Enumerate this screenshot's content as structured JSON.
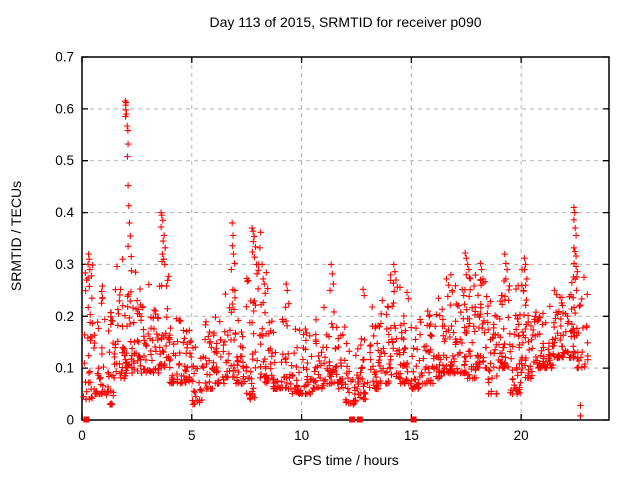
{
  "chart_data": {
    "type": "scatter",
    "title": "Day 113 of 2015, SRMTID for receiver p090",
    "xlabel": "GPS time / hours",
    "ylabel": "SRMTID / TECUs",
    "xlim": [
      0,
      24
    ],
    "ylim": [
      0,
      0.7
    ],
    "xticks": {
      "values": [
        0,
        5,
        10,
        15,
        20
      ],
      "labels": [
        "0",
        "5",
        "10",
        "15",
        "20"
      ]
    },
    "yticks": {
      "values": [
        0,
        0.1,
        0.2,
        0.3,
        0.4,
        0.5,
        0.6,
        0.7
      ],
      "labels": [
        "0",
        "0.1",
        "0.2",
        "0.3",
        "0.4",
        "0.5",
        "0.6",
        "0.7"
      ]
    },
    "grid": {
      "visible": true,
      "style": "dashed",
      "color": "#b0b0b0"
    },
    "legend": "none",
    "marker": {
      "shape": "plus",
      "color": "#ff0000",
      "size": 7
    },
    "series_name": "SRMTID",
    "point_bins_comment": "binned read-off of the dense scatter: [hour_start, hour_end, count, y_min, y_max], values in TECUs; distribution bottom-heavy",
    "point_bins": [
      [
        0.05,
        0.5,
        32,
        0.04,
        0.3
      ],
      [
        0.5,
        1.0,
        32,
        0.05,
        0.26
      ],
      [
        1.0,
        1.5,
        30,
        0.03,
        0.22
      ],
      [
        1.5,
        2.0,
        32,
        0.08,
        0.3
      ],
      [
        2.0,
        2.5,
        36,
        0.09,
        0.3
      ],
      [
        2.5,
        3.0,
        32,
        0.09,
        0.26
      ],
      [
        3.0,
        3.5,
        32,
        0.09,
        0.27
      ],
      [
        3.5,
        4.0,
        34,
        0.1,
        0.32
      ],
      [
        4.0,
        4.5,
        28,
        0.07,
        0.2
      ],
      [
        4.5,
        5.0,
        28,
        0.07,
        0.18
      ],
      [
        5.0,
        5.5,
        27,
        0.03,
        0.16
      ],
      [
        5.5,
        6.0,
        27,
        0.06,
        0.22
      ],
      [
        6.0,
        6.5,
        28,
        0.07,
        0.2
      ],
      [
        6.5,
        7.0,
        30,
        0.08,
        0.28
      ],
      [
        7.0,
        7.5,
        30,
        0.07,
        0.22
      ],
      [
        7.5,
        8.0,
        32,
        0.04,
        0.33
      ],
      [
        8.0,
        8.5,
        32,
        0.07,
        0.3
      ],
      [
        8.5,
        9.0,
        28,
        0.06,
        0.2
      ],
      [
        9.0,
        9.5,
        27,
        0.06,
        0.24
      ],
      [
        9.5,
        10.0,
        27,
        0.05,
        0.18
      ],
      [
        10.0,
        10.5,
        27,
        0.05,
        0.18
      ],
      [
        10.5,
        11.0,
        27,
        0.06,
        0.2
      ],
      [
        11.0,
        11.5,
        29,
        0.07,
        0.26
      ],
      [
        11.5,
        12.0,
        27,
        0.06,
        0.2
      ],
      [
        12.0,
        12.5,
        27,
        0.03,
        0.18
      ],
      [
        12.5,
        13.0,
        29,
        0.04,
        0.2
      ],
      [
        13.0,
        13.5,
        29,
        0.06,
        0.22
      ],
      [
        13.5,
        14.0,
        30,
        0.07,
        0.24
      ],
      [
        14.0,
        14.5,
        31,
        0.08,
        0.28
      ],
      [
        14.5,
        15.0,
        29,
        0.07,
        0.24
      ],
      [
        15.0,
        15.5,
        27,
        0.06,
        0.2
      ],
      [
        15.5,
        16.0,
        29,
        0.07,
        0.22
      ],
      [
        16.0,
        16.5,
        30,
        0.08,
        0.24
      ],
      [
        16.5,
        17.0,
        34,
        0.09,
        0.26
      ],
      [
        17.0,
        17.5,
        36,
        0.09,
        0.28
      ],
      [
        17.5,
        18.0,
        36,
        0.08,
        0.28
      ],
      [
        18.0,
        18.5,
        36,
        0.1,
        0.28
      ],
      [
        18.5,
        19.0,
        32,
        0.05,
        0.24
      ],
      [
        19.0,
        19.5,
        36,
        0.1,
        0.28
      ],
      [
        19.5,
        20.0,
        34,
        0.05,
        0.26
      ],
      [
        20.0,
        20.5,
        36,
        0.08,
        0.29
      ],
      [
        20.5,
        21.0,
        32,
        0.1,
        0.23
      ],
      [
        21.0,
        21.5,
        32,
        0.1,
        0.24
      ],
      [
        21.5,
        22.0,
        34,
        0.12,
        0.25
      ],
      [
        22.0,
        22.5,
        34,
        0.12,
        0.3
      ],
      [
        22.5,
        23.05,
        26,
        0.1,
        0.28
      ]
    ],
    "outlier_points_comment": "individually visible spike points [hour, TECUs]",
    "outlier_points": [
      [
        0.28,
        0.3
      ],
      [
        0.3,
        0.32
      ],
      [
        0.33,
        0.31
      ],
      [
        0.36,
        0.29
      ],
      [
        1.97,
        0.615
      ],
      [
        1.99,
        0.607
      ],
      [
        2.01,
        0.612
      ],
      [
        2.0,
        0.598
      ],
      [
        2.02,
        0.59
      ],
      [
        1.98,
        0.585
      ],
      [
        2.06,
        0.567
      ],
      [
        2.09,
        0.558
      ],
      [
        2.1,
        0.532
      ],
      [
        2.07,
        0.508
      ],
      [
        2.1,
        0.452
      ],
      [
        2.13,
        0.413
      ],
      [
        2.16,
        0.38
      ],
      [
        2.2,
        0.355
      ],
      [
        2.1,
        0.335
      ],
      [
        2.24,
        0.315
      ],
      [
        1.85,
        0.31
      ],
      [
        3.6,
        0.4
      ],
      [
        3.63,
        0.395
      ],
      [
        3.68,
        0.385
      ],
      [
        3.6,
        0.372
      ],
      [
        3.74,
        0.356
      ],
      [
        3.7,
        0.345
      ],
      [
        3.79,
        0.332
      ],
      [
        3.66,
        0.32
      ],
      [
        3.72,
        0.31
      ],
      [
        3.77,
        0.3
      ],
      [
        6.84,
        0.38
      ],
      [
        6.88,
        0.356
      ],
      [
        6.85,
        0.336
      ],
      [
        6.9,
        0.32
      ],
      [
        6.95,
        0.302
      ],
      [
        6.8,
        0.29
      ],
      [
        7.74,
        0.37
      ],
      [
        7.79,
        0.364
      ],
      [
        7.84,
        0.354
      ],
      [
        7.8,
        0.344
      ],
      [
        7.9,
        0.334
      ],
      [
        7.76,
        0.324
      ],
      [
        7.86,
        0.314
      ],
      [
        7.95,
        0.3
      ],
      [
        8.1,
        0.332
      ],
      [
        8.14,
        0.362
      ],
      [
        8.2,
        0.3
      ],
      [
        7.97,
        0.282
      ],
      [
        8.25,
        0.272
      ],
      [
        9.3,
        0.262
      ],
      [
        9.35,
        0.25
      ],
      [
        11.35,
        0.3
      ],
      [
        11.4,
        0.282
      ],
      [
        11.45,
        0.262
      ],
      [
        11.3,
        0.25
      ],
      [
        12.8,
        0.252
      ],
      [
        12.85,
        0.24
      ],
      [
        14.2,
        0.3
      ],
      [
        14.25,
        0.286
      ],
      [
        14.3,
        0.27
      ],
      [
        14.36,
        0.256
      ],
      [
        14.22,
        0.248
      ],
      [
        14.8,
        0.246
      ],
      [
        14.86,
        0.234
      ],
      [
        16.6,
        0.272
      ],
      [
        16.7,
        0.26
      ],
      [
        16.8,
        0.28
      ],
      [
        16.86,
        0.25
      ],
      [
        17.45,
        0.322
      ],
      [
        17.5,
        0.312
      ],
      [
        17.56,
        0.3
      ],
      [
        17.62,
        0.29
      ],
      [
        17.5,
        0.28
      ],
      [
        18.15,
        0.302
      ],
      [
        18.2,
        0.29
      ],
      [
        18.26,
        0.272
      ],
      [
        19.25,
        0.32
      ],
      [
        19.3,
        0.302
      ],
      [
        19.36,
        0.29
      ],
      [
        19.3,
        0.272
      ],
      [
        20.15,
        0.312
      ],
      [
        20.2,
        0.3
      ],
      [
        20.16,
        0.29
      ],
      [
        20.26,
        0.272
      ],
      [
        20.2,
        0.26
      ],
      [
        20.1,
        0.25
      ],
      [
        19.95,
        0.052
      ],
      [
        19.97,
        0.072
      ],
      [
        20.0,
        0.092
      ],
      [
        22.4,
        0.41
      ],
      [
        22.44,
        0.4
      ],
      [
        22.4,
        0.386
      ],
      [
        22.46,
        0.37
      ],
      [
        22.5,
        0.356
      ],
      [
        22.4,
        0.332
      ],
      [
        22.45,
        0.325
      ],
      [
        22.5,
        0.316
      ],
      [
        22.41,
        0.302
      ],
      [
        22.5,
        0.296
      ],
      [
        22.56,
        0.286
      ],
      [
        22.46,
        0.272
      ],
      [
        22.52,
        0.25
      ],
      [
        22.7,
        0.008
      ],
      [
        22.7,
        0.028
      ]
    ],
    "zero_marker_points_comment": "filled square markers sitting on the x-axis",
    "zero_marker_points": [
      {
        "x": 0.2,
        "y": 0
      },
      {
        "x": 12.3,
        "y": 0
      },
      {
        "x": 12.65,
        "y": 0
      },
      {
        "x": 15.1,
        "y": 0
      }
    ]
  }
}
